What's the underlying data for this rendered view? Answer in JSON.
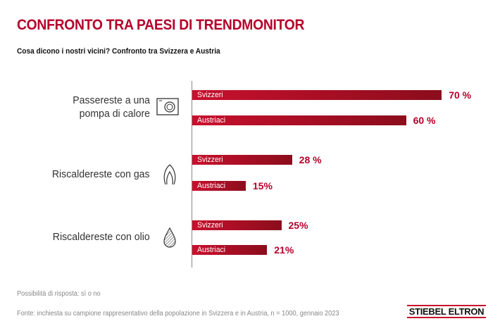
{
  "chart_data": {
    "type": "bar",
    "orientation": "horizontal",
    "title": "CONFRONTO TRA PAESI DI TRENDMONITOR",
    "subtitle": "Cosa dicono i nostri vicini? Confronto tra Svizzera e Austria",
    "categories": [
      "Passereste a una pompa di calore",
      "Riscaldereste con gas",
      "Riscaldereste con olio"
    ],
    "category_icons": [
      "heat-pump-icon",
      "gas-flame-icon",
      "oil-drop-icon"
    ],
    "series": [
      {
        "name": "Svizzeri",
        "values": [
          70,
          28,
          25
        ],
        "labels": [
          "70 %",
          "28 %",
          "25%"
        ]
      },
      {
        "name": "Austriaci",
        "values": [
          60,
          15,
          21
        ],
        "labels": [
          "60 %",
          "15%",
          "21%"
        ]
      }
    ],
    "xlim": [
      0,
      100
    ],
    "unit": "%",
    "grid": false,
    "colors": {
      "bar": "#c8102e",
      "bar_end": "#8b0d1c",
      "value": "#b5002a"
    }
  },
  "footer": {
    "note": "Possibilità di risposta: sì o no",
    "source": "Fonte: inchiesta su campione rappresentativo della popolazione in Svizzera e in Austria, n = 1000, gennaio 2023"
  },
  "logo": "STIEBEL ELTRON"
}
